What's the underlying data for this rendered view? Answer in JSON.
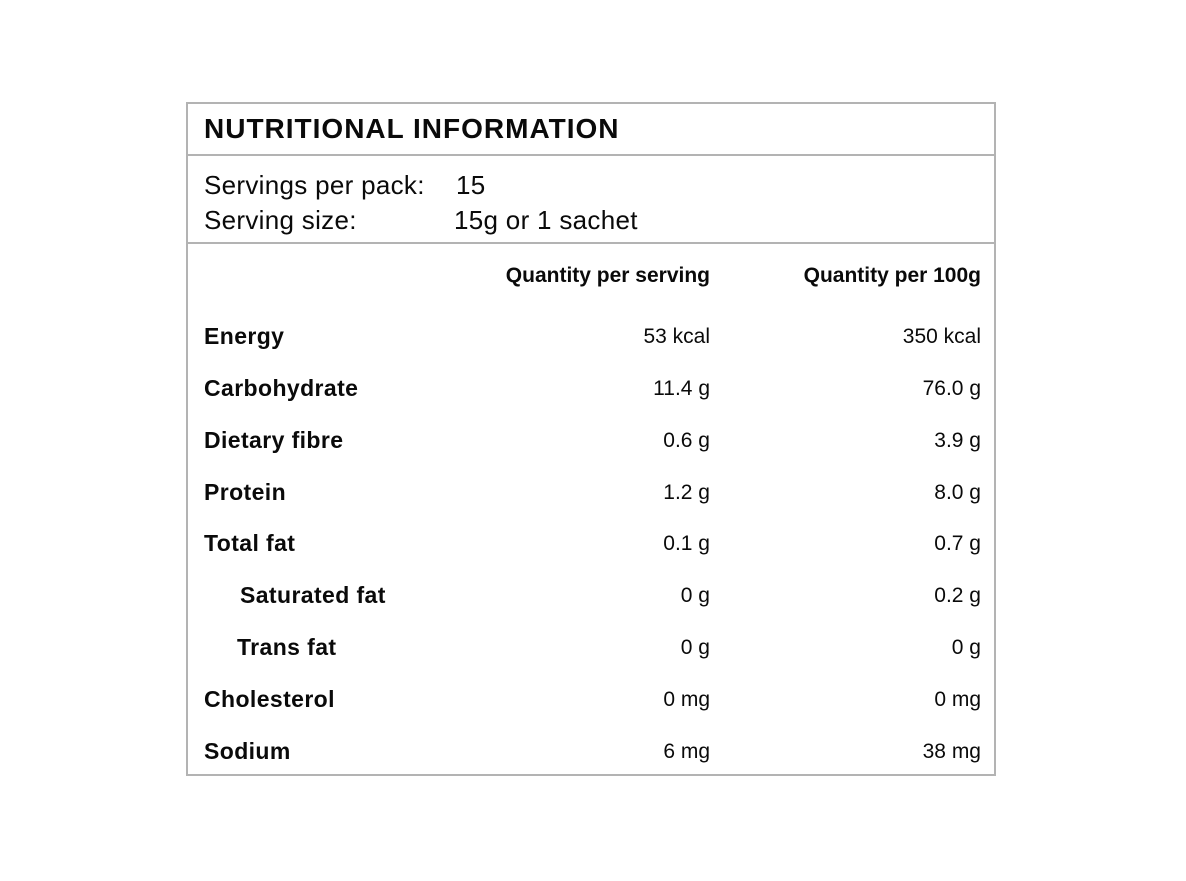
{
  "title": "NUTRITIONAL INFORMATION",
  "servings": {
    "per_pack_label": "Servings per pack:",
    "per_pack_value": "15",
    "size_label": "Serving size:",
    "size_value": "15g or 1 sachet"
  },
  "columns": {
    "per_serving": "Quantity per serving",
    "per_100g": "Quantity per 100g"
  },
  "rows": [
    {
      "name": "Energy",
      "per_serving": "53 kcal",
      "per_100g": "350 kcal"
    },
    {
      "name": "Carbohydrate",
      "per_serving": "11.4 g",
      "per_100g": "76.0 g"
    },
    {
      "name": "Dietary fibre",
      "per_serving": "0.6 g",
      "per_100g": "3.9 g"
    },
    {
      "name": "Protein",
      "per_serving": "1.2 g",
      "per_100g": "8.0 g"
    },
    {
      "name": "Total fat",
      "per_serving": "0.1 g",
      "per_100g": "0.7 g"
    },
    {
      "name": "Saturated fat",
      "per_serving": "0 g",
      "per_100g": "0.2 g"
    },
    {
      "name": "Trans fat",
      "per_serving": "0 g",
      "per_100g": "0 g"
    },
    {
      "name": "Cholesterol",
      "per_serving": "0 mg",
      "per_100g": "0 mg"
    },
    {
      "name": "Sodium",
      "per_serving": "6 mg",
      "per_100g": "38 mg"
    }
  ]
}
